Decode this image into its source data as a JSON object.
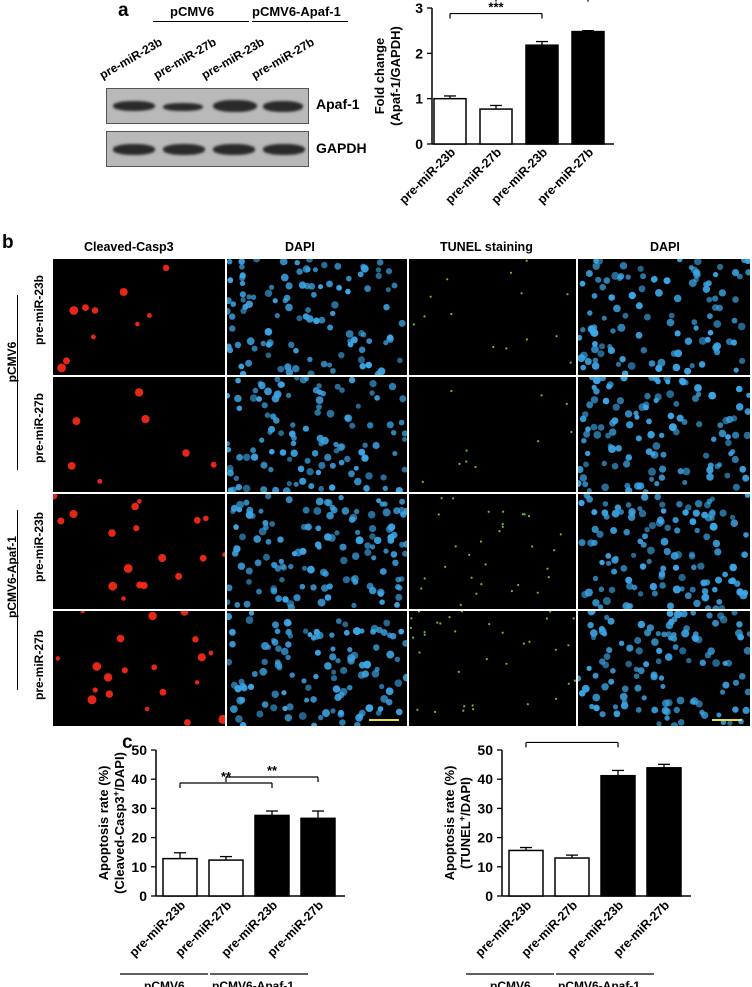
{
  "panel_a": {
    "letter": "a",
    "group_labels": [
      "pCMV6",
      "pCMV6-Apaf-1"
    ],
    "lane_labels": [
      "pre-miR-23b",
      "pre-miR-27b",
      "pre-miR-23b",
      "pre-miR-27b"
    ],
    "blot_labels": [
      "Apaf-1",
      "GAPDH"
    ],
    "apaf1_band_intensity": [
      0.75,
      0.45,
      1.0,
      0.85
    ],
    "gapdh_band_intensity": [
      0.85,
      0.85,
      0.85,
      0.85
    ]
  },
  "panel_b": {
    "letter": "b",
    "column_headers": [
      "Cleaved-Casp3",
      "DAPI",
      "TUNEL staining",
      "DAPI"
    ],
    "row_labels": [
      "pre-miR-23b",
      "pre-miR-27b",
      "pre-miR-23b",
      "pre-miR-27b"
    ],
    "group_labels": [
      "pCMV6",
      "pCMV6-Apaf-1"
    ],
    "stain_colors": {
      "casp3": "#ff2a1a",
      "dapi": "#3da6e6",
      "tunel": "#7ecb3a"
    }
  },
  "panel_c": {
    "letter": "c",
    "group_labels": [
      "pCMV6",
      "pCMV6-Apaf-1"
    ]
  },
  "chart_data": [
    {
      "type": "bar",
      "panel": "a",
      "categories": [
        "pre-miR-23b",
        "pre-miR-27b",
        "pre-miR-23b",
        "pre-miR-27b"
      ],
      "values": [
        1.0,
        0.77,
        2.18,
        2.48
      ],
      "errors": [
        0.06,
        0.08,
        0.08,
        0.02
      ],
      "fills": [
        "#ffffff",
        "#ffffff",
        "#000000",
        "#000000"
      ],
      "ylabel": [
        "Fold change",
        "(Apaf-1/GAPDH)"
      ],
      "ylim": [
        0,
        3
      ],
      "yticks": [
        0,
        1,
        2,
        3
      ],
      "significance": [
        {
          "from": 0,
          "to": 2,
          "label": "***"
        },
        {
          "from": 1,
          "to": 3,
          "label": "***"
        }
      ]
    },
    {
      "type": "bar",
      "panel": "c-left",
      "categories": [
        "pre-miR-23b",
        "pre-miR-27b",
        "pre-miR-23b",
        "pre-miR-27b"
      ],
      "values": [
        12.8,
        12.3,
        27.6,
        26.6
      ],
      "errors": [
        2.0,
        1.2,
        1.5,
        2.5
      ],
      "fills": [
        "#ffffff",
        "#ffffff",
        "#000000",
        "#000000"
      ],
      "ylabel": [
        "Apoptosis rate (%)",
        "(Cleaved-Casp3+/DAPI)"
      ],
      "ylim": [
        0,
        50
      ],
      "yticks": [
        0,
        10,
        20,
        30,
        40,
        50
      ],
      "significance": [
        {
          "from": 0,
          "to": 2,
          "label": "**"
        },
        {
          "from": 1,
          "to": 3,
          "label": "**"
        }
      ]
    },
    {
      "type": "bar",
      "panel": "c-right",
      "categories": [
        "pre-miR-23b",
        "pre-miR-27b",
        "pre-miR-23b",
        "pre-miR-27b"
      ],
      "values": [
        15.6,
        13.0,
        41.2,
        43.9
      ],
      "errors": [
        1.0,
        1.0,
        1.8,
        1.2
      ],
      "fills": [
        "#ffffff",
        "#ffffff",
        "#000000",
        "#000000"
      ],
      "ylabel": [
        "Apoptosis rate (%)",
        "(TUNEL+/DAPI)"
      ],
      "ylim": [
        0,
        50
      ],
      "yticks": [
        0,
        10,
        20,
        30,
        40,
        50
      ],
      "significance": [
        {
          "from": 0,
          "to": 2,
          "label": "***"
        },
        {
          "from": 1,
          "to": 3,
          "label": "***"
        }
      ]
    }
  ]
}
